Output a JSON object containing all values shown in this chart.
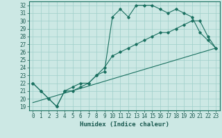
{
  "title": "",
  "xlabel": "Humidex (Indice chaleur)",
  "xlim": [
    -0.5,
    23.5
  ],
  "ylim": [
    18.5,
    32.5
  ],
  "xticks": [
    0,
    1,
    2,
    3,
    4,
    5,
    6,
    7,
    8,
    9,
    10,
    11,
    12,
    13,
    14,
    15,
    16,
    17,
    18,
    19,
    20,
    21,
    22,
    23
  ],
  "yticks": [
    19,
    20,
    21,
    22,
    23,
    24,
    25,
    26,
    27,
    28,
    29,
    30,
    31,
    32
  ],
  "bg_color": "#cce8e4",
  "grid_color": "#9fcfca",
  "line_color": "#1a7060",
  "line1_x": [
    0,
    1,
    2,
    3,
    4,
    5,
    6,
    7,
    8,
    9,
    10,
    11,
    12,
    13,
    14,
    15,
    16,
    17,
    18,
    19,
    20,
    21,
    22,
    23
  ],
  "line1_y": [
    22,
    21,
    20,
    19,
    21,
    21,
    21.5,
    22,
    23,
    23.5,
    30.5,
    31.5,
    30.5,
    32,
    32,
    32,
    31.5,
    31,
    31.5,
    31,
    30.5,
    28.5,
    27.5,
    26.5
  ],
  "line2_x": [
    0,
    1,
    2,
    3,
    4,
    5,
    6,
    7,
    8,
    9,
    10,
    11,
    12,
    13,
    14,
    15,
    16,
    17,
    18,
    19,
    20,
    21,
    22,
    23
  ],
  "line2_y": [
    22,
    21,
    20,
    19,
    21,
    21.5,
    22,
    22,
    23,
    24,
    25.5,
    26,
    26.5,
    27,
    27.5,
    28,
    28.5,
    28.5,
    29,
    29.5,
    30,
    30,
    28,
    26.5
  ],
  "line3_x": [
    0,
    23
  ],
  "line3_y": [
    19.5,
    26.5
  ],
  "tick_font_size": 5.5,
  "xlabel_font_size": 6.5
}
